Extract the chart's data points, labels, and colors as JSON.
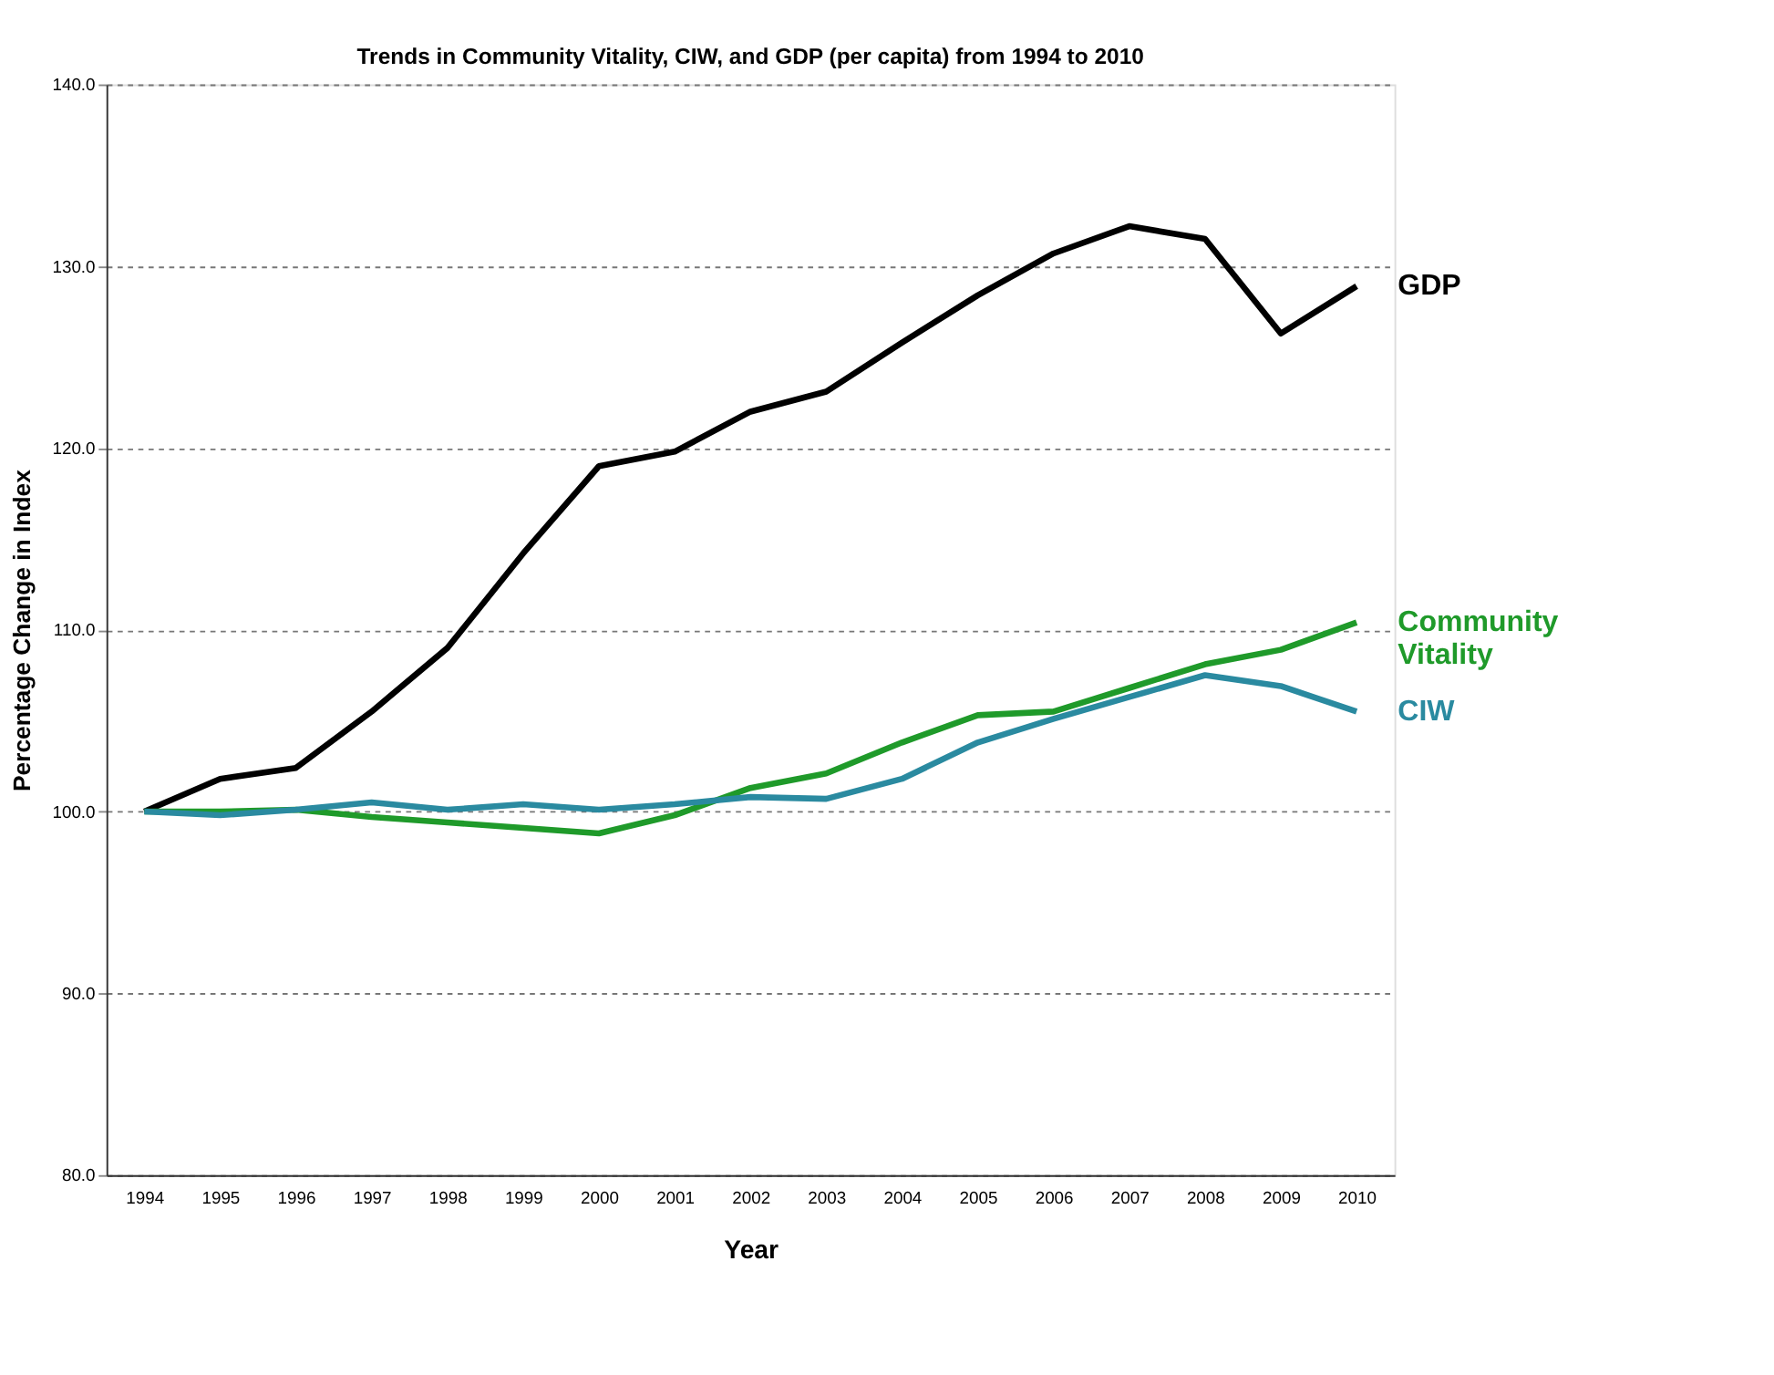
{
  "chart_data": {
    "type": "line",
    "title": "Trends in Community Vitality, CIW, and GDP (per capita) from 1994 to 2010",
    "xlabel": "Year",
    "ylabel": "Percentage Change in Index",
    "categories": [
      "1994",
      "1995",
      "1996",
      "1997",
      "1998",
      "1999",
      "2000",
      "2001",
      "2002",
      "2003",
      "2004",
      "2005",
      "2006",
      "2007",
      "2008",
      "2009",
      "2010"
    ],
    "series": [
      {
        "name": "GDP",
        "color": "#000000",
        "values": [
          100,
          101.8,
          102.4,
          105.5,
          109,
          114.2,
          119,
          119.8,
          122,
          123.1,
          125.8,
          128.4,
          130.7,
          132.2,
          131.5,
          126.3,
          128.9
        ]
      },
      {
        "name": "Community Vitality",
        "color": "#1f9a2a",
        "values": [
          100,
          100,
          100.1,
          99.7,
          99.4,
          99.1,
          98.8,
          99.8,
          101.3,
          102.1,
          103.8,
          105.3,
          105.5,
          106.8,
          108.1,
          108.9,
          110.4
        ]
      },
      {
        "name": "CIW",
        "color": "#2a8aa0",
        "values": [
          100,
          99.8,
          100.1,
          100.5,
          100.1,
          100.4,
          100.1,
          100.4,
          100.8,
          100.7,
          101.8,
          103.8,
          105.1,
          106.3,
          107.5,
          106.9,
          105.5
        ]
      }
    ],
    "ylim": [
      80,
      140
    ],
    "yticks": [
      {
        "value": 80,
        "label": "80.0"
      },
      {
        "value": 90,
        "label": "90.0"
      },
      {
        "value": 100,
        "label": "100.0"
      },
      {
        "value": 110,
        "label": "110.0"
      },
      {
        "value": 120,
        "label": "120.0"
      },
      {
        "value": 130,
        "label": "130.0"
      },
      {
        "value": 140,
        "label": "140.0"
      }
    ],
    "grid": "y",
    "legend": false,
    "marker": "none",
    "line_style": "solid"
  }
}
